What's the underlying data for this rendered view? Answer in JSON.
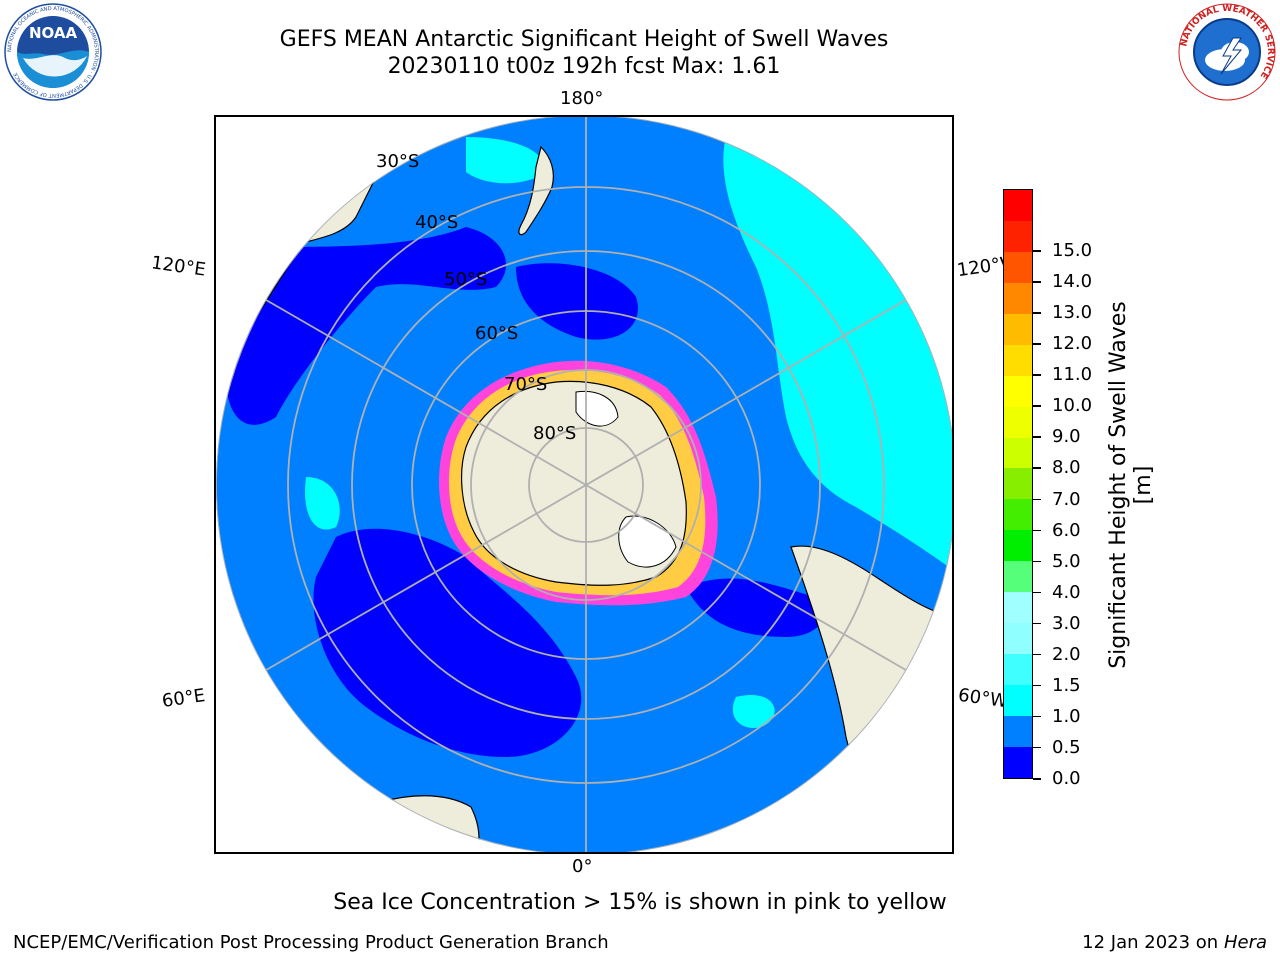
{
  "title": {
    "line1": "GEFS MEAN Antarctic Significant Height of Swell Waves",
    "line2": "20230110 t00z 192h fcst   Max: 1.61"
  },
  "logos": {
    "noaa": {
      "name": "noaa-logo",
      "text": "NOAA",
      "ring_text": "NATIONAL OCEANIC AND ATMOSPHERIC ADMINISTRATION · U.S. DEPARTMENT OF COMMERCE"
    },
    "nws": {
      "name": "national-weather-service-logo",
      "ring_text": "NATIONAL WEATHER SERVICE"
    }
  },
  "map": {
    "projection": "south polar stereographic",
    "longitude_labels": {
      "top": "180°",
      "bottom": "0°",
      "upper_left": "120°E",
      "lower_left": "60°E",
      "upper_right": "120°W",
      "lower_right": "60°W"
    },
    "latitude_labels": [
      "30°S",
      "40°S",
      "50°S",
      "60°S",
      "70°S",
      "80°S"
    ],
    "colors": {
      "land": "#eeeddb",
      "ocean_0_0.5": "#0000ff",
      "ocean_0.5_1.0": "#0080ff",
      "ocean_1.0_1.5": "#00ffff",
      "ocean_1.5_2.0": "#40ffff",
      "sea_ice_pink": "#ff44dd",
      "sea_ice_yellow": "#ffcc44",
      "graticule": "#b0b0b0"
    }
  },
  "colorbar": {
    "title": "Significant Height of Swell Waves [m]",
    "labels": [
      "0.0",
      "0.5",
      "1.0",
      "1.5",
      "2.0",
      "3.0",
      "4.0",
      "5.0",
      "6.0",
      "7.0",
      "8.0",
      "9.0",
      "10.0",
      "11.0",
      "12.0",
      "13.0",
      "14.0",
      "15.0"
    ],
    "colors": [
      "#0000ff",
      "#0080ff",
      "#00ffff",
      "#40ffff",
      "#90ffff",
      "#a0ffff",
      "#55ff7a",
      "#00ee00",
      "#44ee00",
      "#88ee00",
      "#ccff00",
      "#eeff00",
      "#ffff00",
      "#ffdd00",
      "#ffbb00",
      "#ff8800",
      "#ff5500",
      "#ff2200",
      "#ff0000"
    ]
  },
  "ice_note": "Sea Ice Concentration > 15% is shown in pink to yellow",
  "footer": {
    "left": "NCEP/EMC/Verification Post Processing Product Generation Branch",
    "right_date": "12 Jan 2023 on ",
    "right_machine": "Hera"
  }
}
